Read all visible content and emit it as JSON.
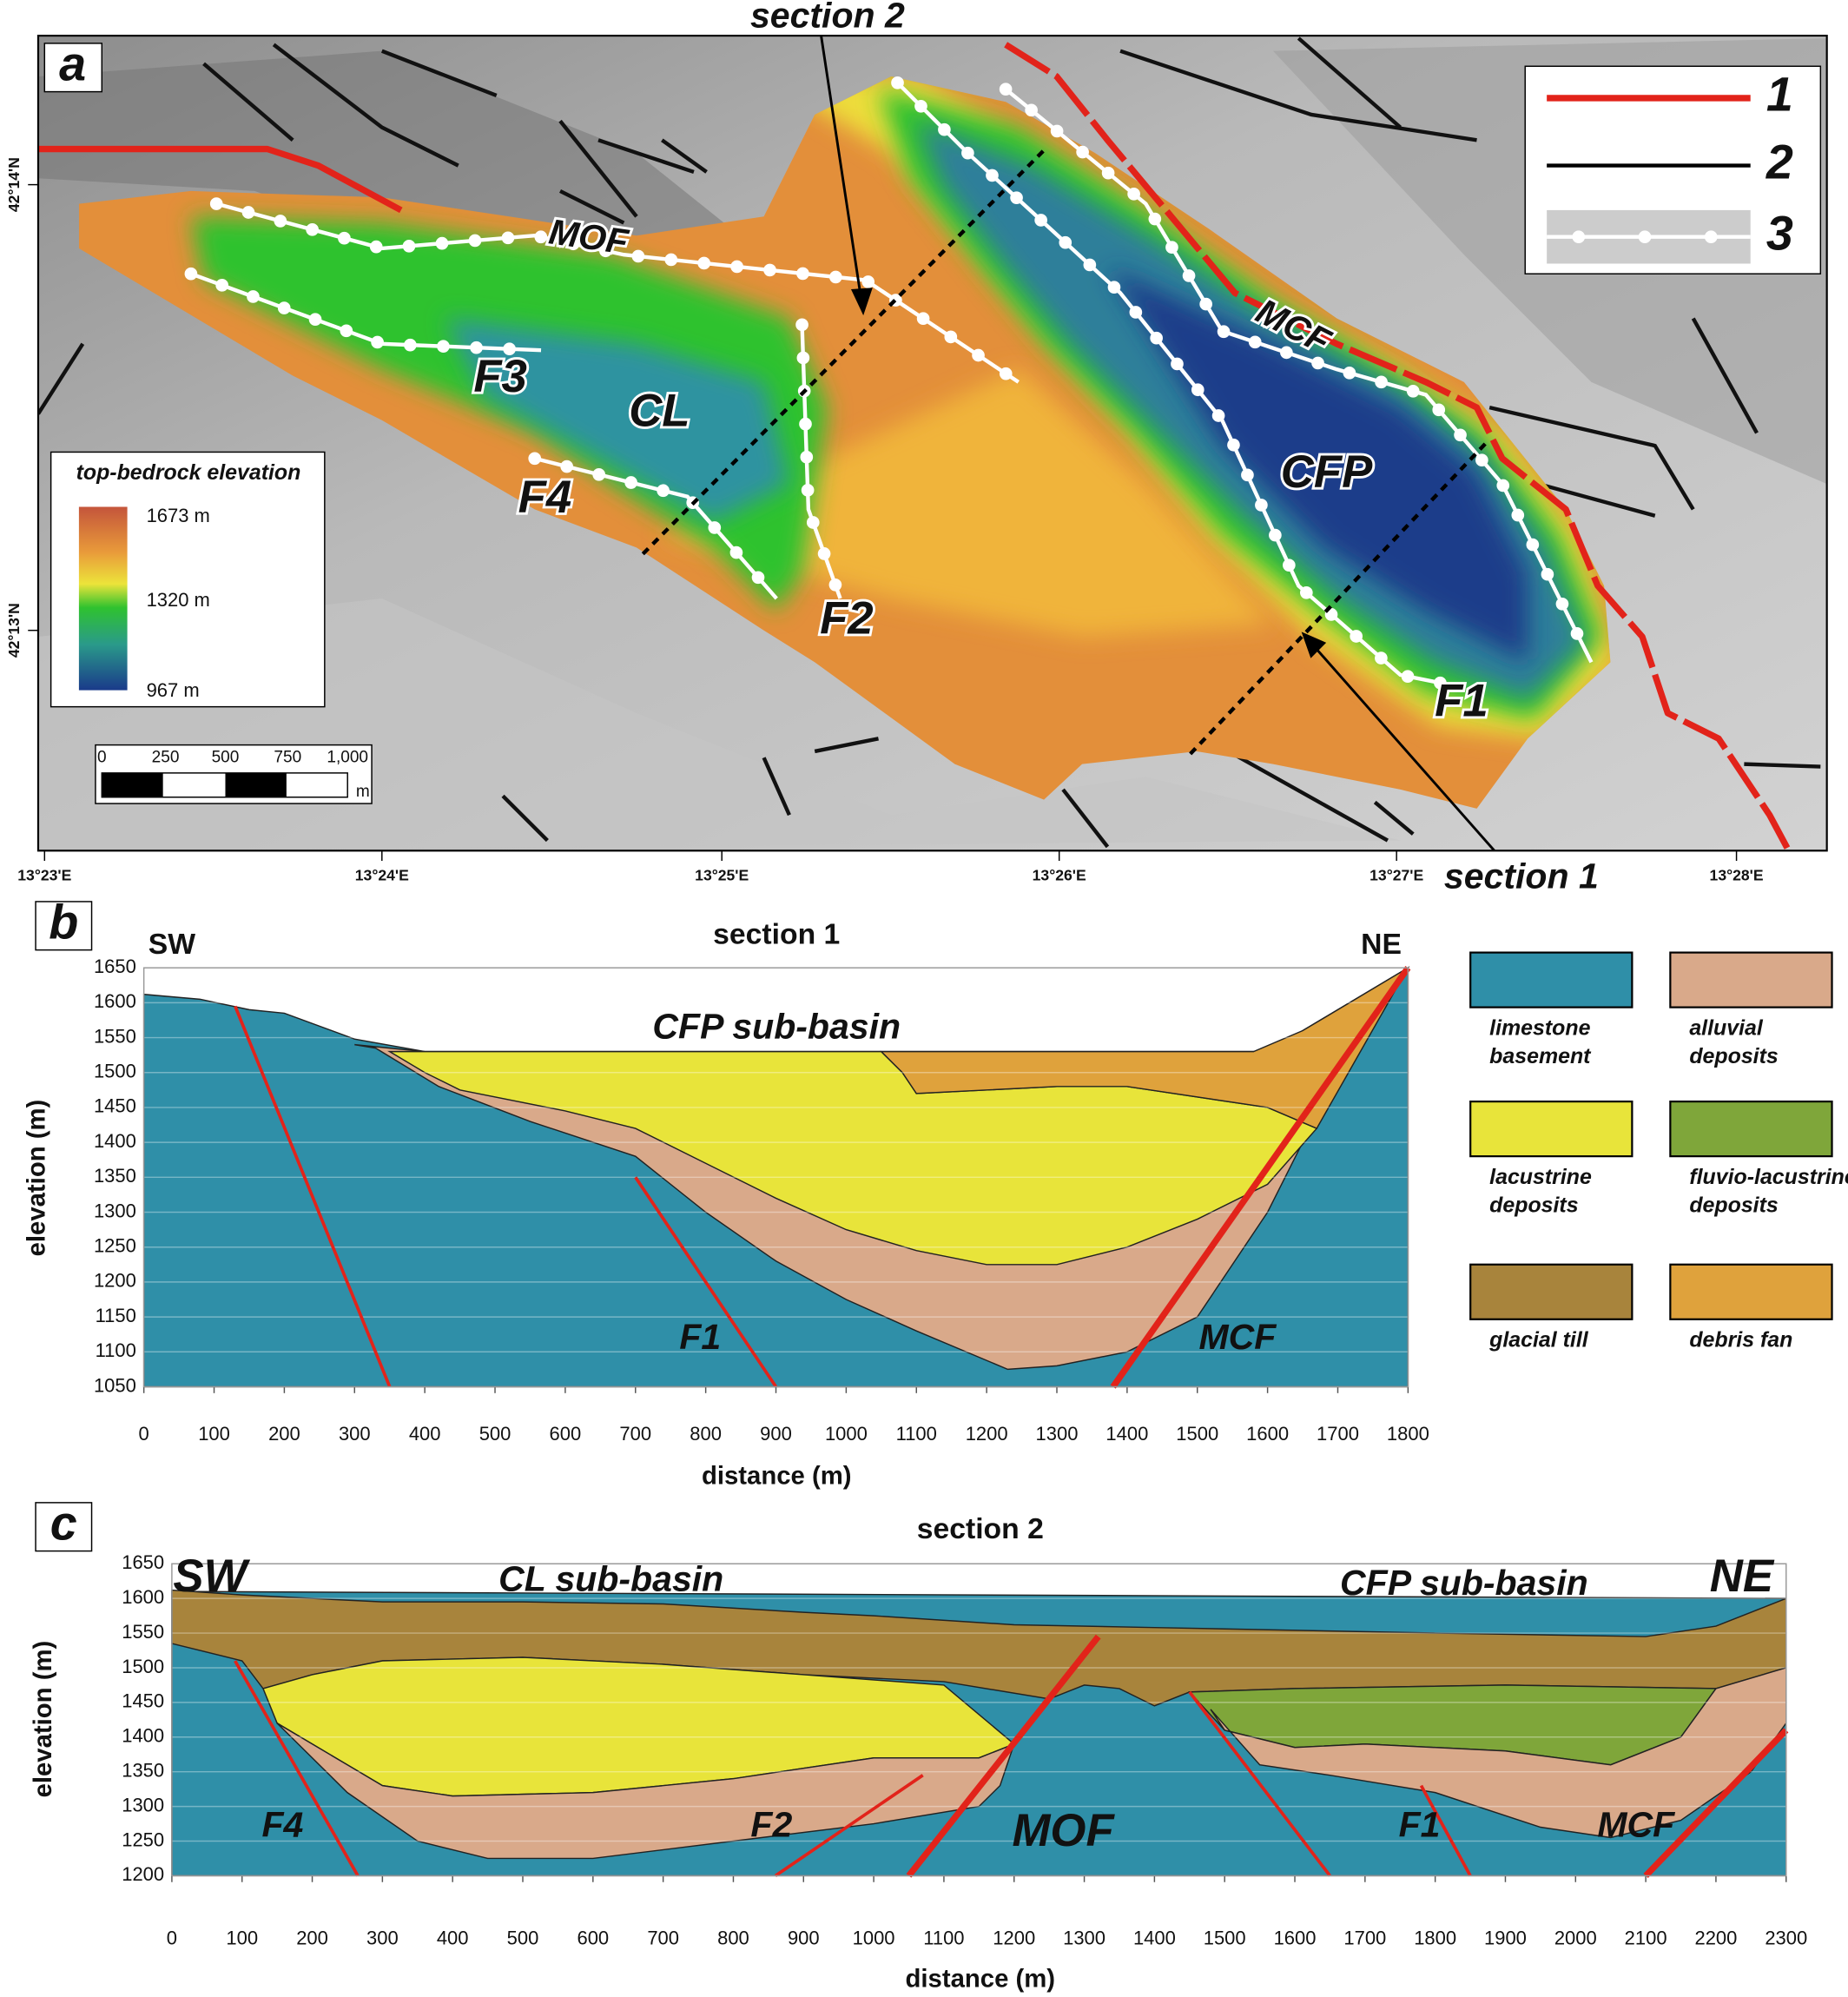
{
  "map": {
    "panel": "a",
    "section_labels": [
      "section 2",
      "section 1"
    ],
    "fault_labels": [
      "MOF",
      "MCF",
      "F3",
      "F4",
      "F2",
      "F1"
    ],
    "basin_labels": [
      "CL",
      "CFP"
    ],
    "colorbar": {
      "title": "top-bedrock elevation",
      "labels": [
        "1673 m",
        "1320 m",
        "967 m"
      ]
    },
    "scale": {
      "ticks": [
        "0",
        "250",
        "500",
        "750",
        "1,000"
      ],
      "unit": "m"
    },
    "lon_labels": [
      "13°23'E",
      "13°24'E",
      "13°25'E",
      "13°26'E",
      "13°27'E",
      "13°28'E"
    ],
    "lat_labels": [
      "42°14'N",
      "42°13'N"
    ],
    "legend": [
      "1",
      "2",
      "3"
    ]
  },
  "legend": [
    {
      "name": "limestone basement",
      "color": "#2f8fa8"
    },
    {
      "name": "alluvial deposits",
      "color": "#d9a98a"
    },
    {
      "name": "lacustrine deposits",
      "color": "#e8e43a"
    },
    {
      "name": "fluvio-lacustrine deposits",
      "color": "#7fa63a"
    },
    {
      "name": "glacial till",
      "color": "#a8843c"
    },
    {
      "name": "debris fan",
      "color": "#dfa23c"
    }
  ],
  "chart_data": [
    {
      "type": "area",
      "panel": "b",
      "title": "section 1",
      "x_label": "distance (m)",
      "y_label": "elevation (m)",
      "xlim": [
        0,
        1800
      ],
      "ylim": [
        1050,
        1650
      ],
      "xticks": [
        0,
        100,
        200,
        300,
        400,
        500,
        600,
        700,
        800,
        900,
        1000,
        1100,
        1200,
        1300,
        1400,
        1500,
        1600,
        1700,
        1800
      ],
      "yticks": [
        1050,
        1100,
        1150,
        1200,
        1250,
        1300,
        1350,
        1400,
        1450,
        1500,
        1550,
        1600,
        1650
      ],
      "grid": true,
      "annotations": [
        "SW",
        "NE",
        "CFP sub-basin",
        "F1",
        "MCF"
      ],
      "layers": [
        {
          "color": "#2f8fa8",
          "x": [
            0,
            0,
            80,
            150,
            200,
            300,
            400,
            1000,
            1600,
            1800,
            1800
          ],
          "values": [
            1050,
            1612,
            1605,
            1590,
            1585,
            1548,
            1530,
            1530,
            1530,
            1650,
            1050
          ]
        },
        {
          "color": "#d9a98a",
          "x": [
            300,
            330,
            420,
            550,
            700,
            800,
            900,
            1000,
            1100,
            1230,
            1300,
            1400,
            1500,
            1600,
            1660,
            1640,
            1000,
            400
          ],
          "values": [
            1540,
            1535,
            1480,
            1430,
            1380,
            1300,
            1230,
            1175,
            1130,
            1075,
            1080,
            1100,
            1150,
            1300,
            1420,
            1530,
            1530,
            1530
          ]
        },
        {
          "color": "#e8e43a",
          "x": [
            350,
            1050,
            1080,
            1100,
            1300,
            1400,
            1600,
            1670,
            1600,
            1500,
            1400,
            1300,
            1200,
            1100,
            1000,
            900,
            800,
            700,
            600,
            450,
            400
          ],
          "values": [
            1530,
            1530,
            1500,
            1470,
            1480,
            1480,
            1450,
            1420,
            1340,
            1290,
            1250,
            1225,
            1225,
            1245,
            1275,
            1320,
            1370,
            1420,
            1445,
            1475,
            1500
          ]
        },
        {
          "color": "#dfa23c",
          "x": [
            1050,
            1580,
            1650,
            1800,
            1670,
            1600,
            1400,
            1300,
            1100,
            1080
          ],
          "values": [
            1530,
            1530,
            1560,
            1650,
            1420,
            1450,
            1480,
            1480,
            1470,
            1500
          ]
        }
      ],
      "faults": [
        {
          "color": "#e2231a",
          "x": [
            130,
            350
          ],
          "values": [
            1595,
            1050
          ]
        },
        {
          "color": "#e2231a",
          "x": [
            700,
            900
          ],
          "values": [
            1350,
            1050
          ]
        },
        {
          "color": "#e2231a",
          "x": [
            1380,
            1800
          ],
          "values": [
            1050,
            1650
          ]
        }
      ]
    },
    {
      "type": "area",
      "panel": "c",
      "title": "section 2",
      "x_label": "distance (m)",
      "y_label": "elevation (m)",
      "xlim": [
        0,
        2300
      ],
      "ylim": [
        1200,
        1650
      ],
      "xticks": [
        0,
        100,
        200,
        300,
        400,
        500,
        600,
        700,
        800,
        900,
        1000,
        1100,
        1200,
        1300,
        1400,
        1500,
        1600,
        1700,
        1800,
        1900,
        2000,
        2100,
        2200,
        2300
      ],
      "yticks": [
        1200,
        1250,
        1300,
        1350,
        1400,
        1450,
        1500,
        1550,
        1600,
        1650
      ],
      "grid": true,
      "annotations": [
        "SW",
        "NE",
        "CL sub-basin",
        "CFP sub-basin",
        "F4",
        "F2",
        "MOF",
        "F1",
        "MCF"
      ],
      "layers": [
        {
          "color": "#2f8fa8",
          "x": [
            0,
            0,
            2300,
            2300
          ],
          "values": [
            1200,
            1610,
            1600,
            1200
          ]
        },
        {
          "color": "#a8843c",
          "x": [
            0,
            100,
            300,
            500,
            700,
            900,
            1000,
            1200,
            1400,
            1800,
            2100,
            2200,
            2300,
            2300,
            2200,
            1900,
            1600,
            1450,
            1400,
            1350,
            1300,
            1250,
            1100,
            900,
            700,
            500,
            300,
            200,
            130,
            100,
            0
          ],
          "values": [
            1612,
            1605,
            1595,
            1595,
            1592,
            1580,
            1575,
            1562,
            1558,
            1550,
            1545,
            1560,
            1600,
            1500,
            1470,
            1475,
            1470,
            1465,
            1445,
            1470,
            1475,
            1455,
            1480,
            1490,
            1505,
            1515,
            1510,
            1490,
            1470,
            1510,
            1535
          ]
        },
        {
          "color": "#e8e43a",
          "x": [
            130,
            200,
            300,
            500,
            700,
            900,
            1100,
            1200,
            1150,
            1000,
            800,
            600,
            400,
            300,
            200,
            150
          ],
          "values": [
            1470,
            1490,
            1510,
            1515,
            1505,
            1490,
            1475,
            1390,
            1370,
            1370,
            1340,
            1320,
            1315,
            1330,
            1390,
            1420
          ]
        },
        {
          "color": "#d9a98a",
          "x": [
            150,
            200,
            300,
            400,
            600,
            800,
            1000,
            1150,
            1200,
            1180,
            1150,
            1000,
            800,
            600,
            450,
            350,
            250,
            170
          ],
          "values": [
            1420,
            1390,
            1330,
            1315,
            1320,
            1340,
            1370,
            1370,
            1390,
            1330,
            1300,
            1275,
            1250,
            1225,
            1225,
            1250,
            1320,
            1400
          ]
        },
        {
          "color": "#7fa63a",
          "x": [
            1450,
            1600,
            1900,
            2200,
            2150,
            2050,
            1900,
            1700,
            1600,
            1500
          ],
          "values": [
            1465,
            1470,
            1475,
            1470,
            1400,
            1360,
            1380,
            1390,
            1385,
            1410
          ]
        },
        {
          "color": "#d9a98a",
          "x": [
            1480,
            1500,
            1600,
            1700,
            1900,
            2050,
            2150,
            2200,
            2300,
            2300,
            2250,
            2150,
            2050,
            1950,
            1800,
            1650,
            1550
          ],
          "values": [
            1440,
            1410,
            1385,
            1390,
            1380,
            1360,
            1400,
            1470,
            1500,
            1420,
            1350,
            1280,
            1255,
            1270,
            1320,
            1345,
            1360
          ]
        }
      ],
      "faults": [
        {
          "color": "#e2231a",
          "x": [
            90,
            265
          ],
          "values": [
            1510,
            1200
          ]
        },
        {
          "color": "#e2231a",
          "x": [
            860,
            1070
          ],
          "values": [
            1200,
            1345
          ]
        },
        {
          "color": "#e2231a",
          "x": [
            1050,
            1320
          ],
          "values": [
            1200,
            1545
          ]
        },
        {
          "color": "#e2231a",
          "x": [
            1450,
            1650
          ],
          "values": [
            1465,
            1200
          ]
        },
        {
          "color": "#e2231a",
          "x": [
            1780,
            1850
          ],
          "values": [
            1330,
            1200
          ]
        },
        {
          "color": "#e2231a",
          "x": [
            2100,
            2300
          ],
          "values": [
            1200,
            1410
          ]
        }
      ]
    }
  ]
}
